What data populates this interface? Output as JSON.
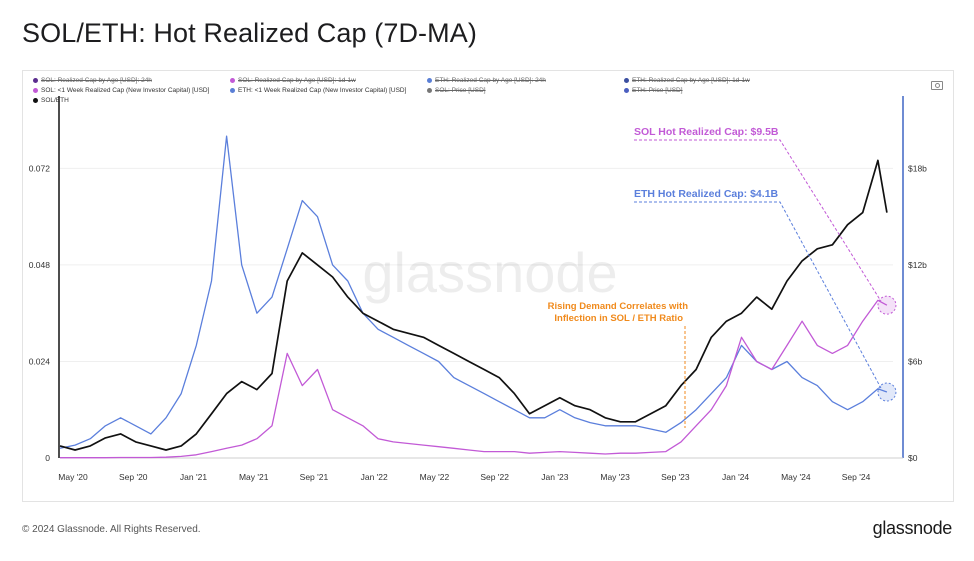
{
  "title": "SOL/ETH: Hot Realized Cap (7D-MA)",
  "footer": {
    "copyright": "© 2024 Glassnode. All Rights Reserved.",
    "logo": "glassnode"
  },
  "watermark": "glassnode",
  "legend": [
    {
      "label": "SOL: Realized Cap by Age [USD]: 24h",
      "color": "#5b2d8e",
      "active": false
    },
    {
      "label": "SOL: Realized Cap by Age [USD]: 1d-1w",
      "color": "#c25ad6",
      "active": false
    },
    {
      "label": "ETH: Realized Cap by Age [USD]: 24h",
      "color": "#5a7fd6",
      "active": false
    },
    {
      "label": "ETH: Realized Cap by Age [USD]: 1d-1w",
      "color": "#3b4fa0",
      "active": false
    },
    {
      "label": "SOL: <1 Week Realized Cap (New Investor Capital) [USD]",
      "color": "#c25ad6",
      "active": true
    },
    {
      "label": "ETH: <1 Week Realized Cap (New Investor Capital) [USD]",
      "color": "#5a7fd6",
      "active": true
    },
    {
      "label": "SOL: Price [USD]",
      "color": "#777777",
      "active": false
    },
    {
      "label": "ETH: Price [USD]",
      "color": "#4b5fc0",
      "active": false
    },
    {
      "label": "SOL/ETH",
      "color": "#111111",
      "active": true
    }
  ],
  "annotations": {
    "sol_hot": "SOL Hot Realized Cap: $9.5B",
    "eth_hot": "ETH Hot Realized Cap: $4.1B",
    "demand_line1": "Rising Demand Correlates with",
    "demand_line2": "Inflection in SOL / ETH Ratio"
  },
  "colors": {
    "sol": "#c25ad6",
    "eth": "#5b7fdc",
    "ratio": "#111111",
    "annotation_orange": "#f08a1c",
    "right_axis_line": "#4b6fc8"
  },
  "chart_data": {
    "type": "line",
    "title": "SOL/ETH: Hot Realized Cap (7D-MA)",
    "x_tick_labels": [
      "May '20",
      "Sep '20",
      "Jan '21",
      "May '21",
      "Sep '21",
      "Jan '22",
      "May '22",
      "Sep '22",
      "Jan '23",
      "May '23",
      "Sep '23",
      "Jan '24",
      "May '24",
      "Sep '24"
    ],
    "y_left": {
      "ticks": [
        "0",
        "0.024",
        "0.048",
        "0.072"
      ],
      "range": [
        0,
        0.09
      ]
    },
    "y_right": {
      "ticks": [
        "$0",
        "$6b",
        "$12b",
        "$18b"
      ],
      "range": [
        0,
        22.5
      ]
    },
    "x_range": [
      0,
      55
    ],
    "series": [
      {
        "name": "SOL/ETH",
        "axis": "left",
        "x": [
          0,
          1,
          2,
          3,
          4,
          5,
          6,
          7,
          8,
          9,
          10,
          11,
          12,
          13,
          14,
          15,
          16,
          17,
          18,
          19,
          20,
          21,
          22,
          23,
          24,
          25,
          26,
          27,
          28,
          29,
          30,
          31,
          32,
          33,
          34,
          35,
          36,
          37,
          38,
          39,
          40,
          41,
          42,
          43,
          44,
          45,
          46,
          47,
          48,
          49,
          50,
          51,
          52,
          53,
          54,
          54.6
        ],
        "values": [
          0.003,
          0.002,
          0.003,
          0.005,
          0.006,
          0.004,
          0.003,
          0.002,
          0.003,
          0.006,
          0.011,
          0.016,
          0.019,
          0.017,
          0.021,
          0.044,
          0.051,
          0.048,
          0.045,
          0.04,
          0.036,
          0.034,
          0.032,
          0.031,
          0.03,
          0.028,
          0.026,
          0.024,
          0.022,
          0.02,
          0.016,
          0.011,
          0.013,
          0.015,
          0.013,
          0.012,
          0.01,
          0.009,
          0.009,
          0.011,
          0.013,
          0.018,
          0.022,
          0.03,
          0.034,
          0.036,
          0.04,
          0.037,
          0.044,
          0.049,
          0.052,
          0.053,
          0.058,
          0.061,
          0.074,
          0.061
        ]
      },
      {
        "name": "SOL: <1 Week Realized Cap (New Investor Capital) [USD]",
        "axis": "right",
        "x": [
          0,
          1,
          2,
          3,
          4,
          5,
          6,
          7,
          8,
          9,
          10,
          11,
          12,
          13,
          14,
          15,
          16,
          17,
          18,
          19,
          20,
          21,
          22,
          23,
          24,
          25,
          26,
          27,
          28,
          29,
          30,
          31,
          32,
          33,
          34,
          35,
          36,
          37,
          38,
          39,
          40,
          41,
          42,
          43,
          44,
          45,
          46,
          47,
          48,
          49,
          50,
          51,
          52,
          53,
          54,
          54.6
        ],
        "values": [
          0.02,
          0.02,
          0.02,
          0.02,
          0.03,
          0.03,
          0.03,
          0.05,
          0.1,
          0.2,
          0.4,
          0.6,
          0.8,
          1.2,
          2.0,
          6.5,
          4.5,
          5.5,
          3.0,
          2.5,
          2.0,
          1.2,
          1.0,
          0.9,
          0.8,
          0.7,
          0.6,
          0.5,
          0.4,
          0.4,
          0.4,
          0.3,
          0.35,
          0.4,
          0.35,
          0.3,
          0.25,
          0.3,
          0.3,
          0.35,
          0.4,
          1.0,
          2.0,
          3.0,
          4.5,
          7.5,
          6.0,
          5.5,
          7.0,
          8.5,
          7.0,
          6.5,
          7.0,
          8.5,
          9.8,
          9.5
        ]
      },
      {
        "name": "ETH: <1 Week Realized Cap (New Investor Capital) [USD]",
        "axis": "right",
        "x": [
          0,
          1,
          2,
          3,
          4,
          5,
          6,
          7,
          8,
          9,
          10,
          11,
          12,
          13,
          14,
          15,
          16,
          17,
          18,
          19,
          20,
          21,
          22,
          23,
          24,
          25,
          26,
          27,
          28,
          29,
          30,
          31,
          32,
          33,
          34,
          35,
          36,
          37,
          38,
          39,
          40,
          41,
          42,
          43,
          44,
          45,
          46,
          47,
          48,
          49,
          50,
          51,
          52,
          53,
          54,
          54.6
        ],
        "values": [
          0.6,
          0.8,
          1.2,
          2.0,
          2.5,
          2.0,
          1.5,
          2.5,
          4.0,
          7.0,
          11.0,
          20.0,
          12.0,
          9.0,
          10.0,
          13.0,
          16.0,
          15.0,
          12.0,
          11.0,
          9.0,
          8.0,
          7.5,
          7.0,
          6.5,
          6.0,
          5.0,
          4.5,
          4.0,
          3.5,
          3.0,
          2.5,
          2.5,
          3.0,
          2.5,
          2.2,
          2.0,
          2.0,
          2.0,
          1.8,
          1.6,
          2.2,
          3.0,
          4.0,
          5.0,
          7.0,
          6.0,
          5.5,
          6.0,
          5.0,
          4.5,
          3.5,
          3.0,
          3.5,
          4.3,
          4.1
        ]
      }
    ]
  }
}
